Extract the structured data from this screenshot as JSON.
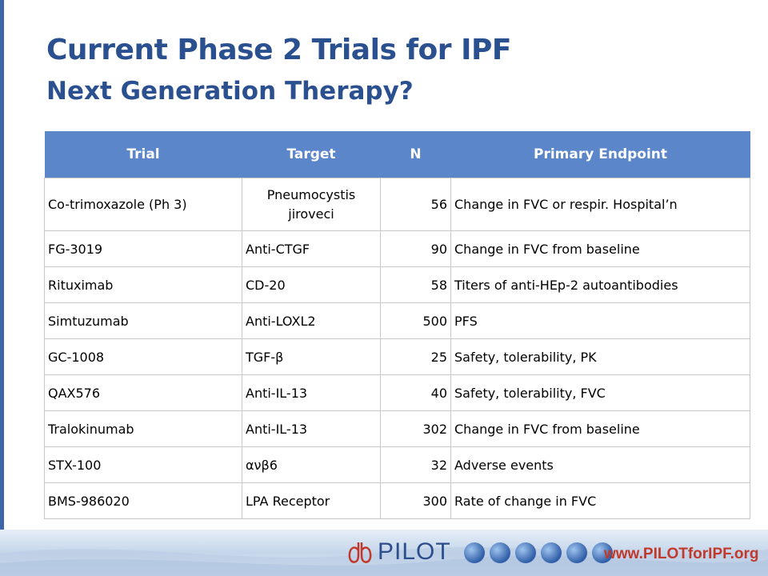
{
  "slide": {
    "title": "Current Phase 2 Trials for IPF",
    "subtitle": "Next Generation Therapy?"
  },
  "table": {
    "headers": [
      "Trial",
      "Target",
      "N",
      "Primary Endpoint"
    ],
    "rows": [
      {
        "trial": "Co-trimoxazole (Ph 3)",
        "target": "Pneumocystis jiroveci",
        "n": "56",
        "endpoint": "Change in FVC or respir. Hospital’n"
      },
      {
        "trial": "FG-3019",
        "target": "Anti-CTGF",
        "n": "90",
        "endpoint": "Change in FVC from baseline"
      },
      {
        "trial": "Rituximab",
        "target": "CD-20",
        "n": "58",
        "endpoint": "Titers of anti-HEp-2 autoantibodies"
      },
      {
        "trial": "Simtuzumab",
        "target": "Anti-LOXL2",
        "n": "500",
        "endpoint": "PFS"
      },
      {
        "trial": "GC-1008",
        "target": "TGF-β",
        "n": "25",
        "endpoint": "Safety, tolerability, PK"
      },
      {
        "trial": "QAX576",
        "target": "Anti-IL-13",
        "n": "40",
        "endpoint": "Safety, tolerability, FVC"
      },
      {
        "trial": "Tralokinumab",
        "target": "Anti-IL-13",
        "n": "302",
        "endpoint": "Change in FVC from baseline"
      },
      {
        "trial": "STX-100",
        "target": "ανβ6",
        "n": "32",
        "endpoint": "Adverse events"
      },
      {
        "trial": "BMS-986020",
        "target": "LPA Receptor",
        "n": "300",
        "endpoint": "Rate of change in FVC"
      }
    ]
  },
  "footer": {
    "logo_text": "PILOT",
    "website": "www.PILOTforIPF.org"
  }
}
